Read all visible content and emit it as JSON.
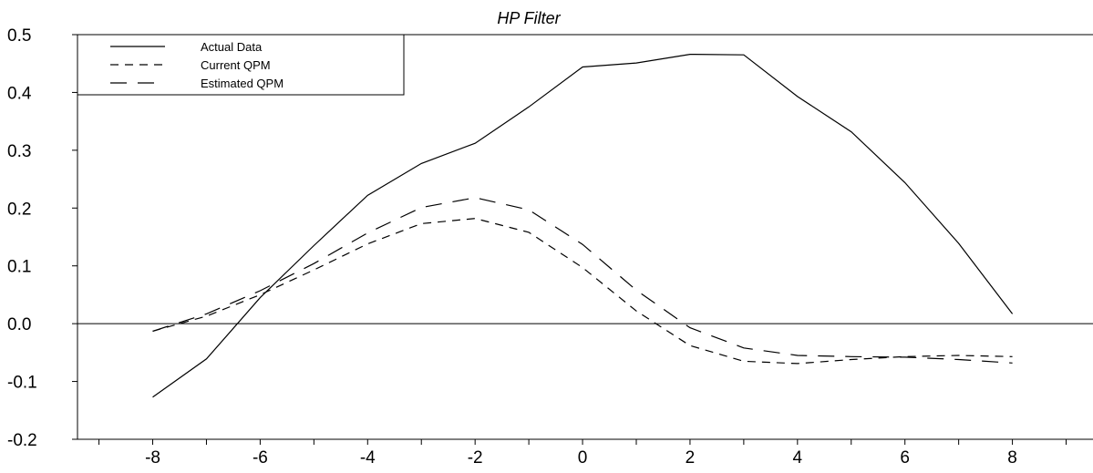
{
  "chart_data": {
    "type": "line",
    "title": "HP Filter",
    "xlabel": "",
    "ylabel": "",
    "xlim": [
      -9.4,
      9.5
    ],
    "ylim": [
      -0.2,
      0.5
    ],
    "x_ticks": [
      -8,
      -6,
      -4,
      -2,
      0,
      2,
      4,
      6,
      8
    ],
    "y_ticks": [
      -0.2,
      -0.1,
      0.0,
      0.1,
      0.2,
      0.3,
      0.4,
      0.5
    ],
    "x_tick_labels": [
      "-8",
      "-6",
      "-4",
      "-2",
      "0",
      "2",
      "4",
      "6",
      "8"
    ],
    "y_tick_labels": [
      "-0.2",
      "-0.1",
      "0.0",
      "0.1",
      "0.2",
      "0.3",
      "0.4",
      "0.5"
    ],
    "grid": false,
    "zero_line": true,
    "legend_position": "top-left",
    "x": [
      -8,
      -7,
      -6,
      -5,
      -4,
      -3,
      -2,
      -1,
      0,
      1,
      2,
      3,
      4,
      5,
      6,
      7,
      8
    ],
    "series": [
      {
        "name": "Actual Data",
        "style": "solid",
        "color": "#000000",
        "values": [
          -0.127,
          -0.061,
          0.045,
          0.135,
          0.222,
          0.277,
          0.312,
          0.375,
          0.444,
          0.451,
          0.466,
          0.465,
          0.393,
          0.332,
          0.244,
          0.139,
          0.017
        ]
      },
      {
        "name": "Current QPM",
        "style": "short-dash",
        "color": "#000000",
        "values": [
          -0.013,
          0.013,
          0.05,
          0.093,
          0.138,
          0.173,
          0.182,
          0.158,
          0.097,
          0.022,
          -0.038,
          -0.065,
          -0.069,
          -0.062,
          -0.057,
          -0.055,
          -0.057
        ]
      },
      {
        "name": "Estimated QPM",
        "style": "long-dash",
        "color": "#000000",
        "values": [
          -0.013,
          0.017,
          0.057,
          0.104,
          0.157,
          0.201,
          0.218,
          0.197,
          0.137,
          0.058,
          -0.007,
          -0.042,
          -0.055,
          -0.057,
          -0.058,
          -0.062,
          -0.068
        ]
      }
    ]
  }
}
